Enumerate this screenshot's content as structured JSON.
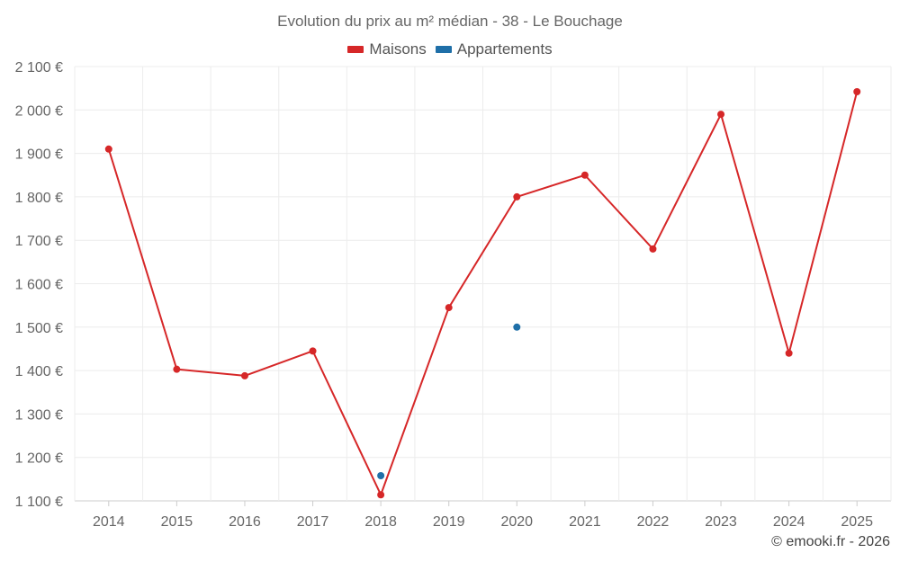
{
  "chart_data": {
    "type": "line",
    "title": "Evolution du prix au m² médian - 38 - Le Bouchage",
    "xlabel": "",
    "ylabel": "",
    "x": [
      "2014",
      "2015",
      "2016",
      "2017",
      "2018",
      "2019",
      "2020",
      "2021",
      "2022",
      "2023",
      "2024",
      "2025"
    ],
    "ylim": [
      1100,
      2100
    ],
    "yticks": [
      1100,
      1200,
      1300,
      1400,
      1500,
      1600,
      1700,
      1800,
      1900,
      2000,
      2100
    ],
    "ytick_labels": [
      "1 100 €",
      "1 200 €",
      "1 300 €",
      "1 400 €",
      "1 500 €",
      "1 600 €",
      "1 700 €",
      "1 800 €",
      "1 900 €",
      "2 000 €",
      "2 100 €"
    ],
    "grid": true,
    "legend_position": "top-center",
    "series": [
      {
        "name": "Maisons",
        "color": "#d62728",
        "values": [
          1910,
          1403,
          1388,
          1445,
          1114,
          1545,
          1800,
          1850,
          1680,
          1990,
          1440,
          2042
        ]
      },
      {
        "name": "Appartements",
        "color": "#1f6fa8",
        "values": [
          null,
          null,
          null,
          null,
          1158,
          null,
          1500,
          null,
          null,
          null,
          null,
          null
        ]
      }
    ]
  },
  "credit": "© emooki.fr - 2026"
}
